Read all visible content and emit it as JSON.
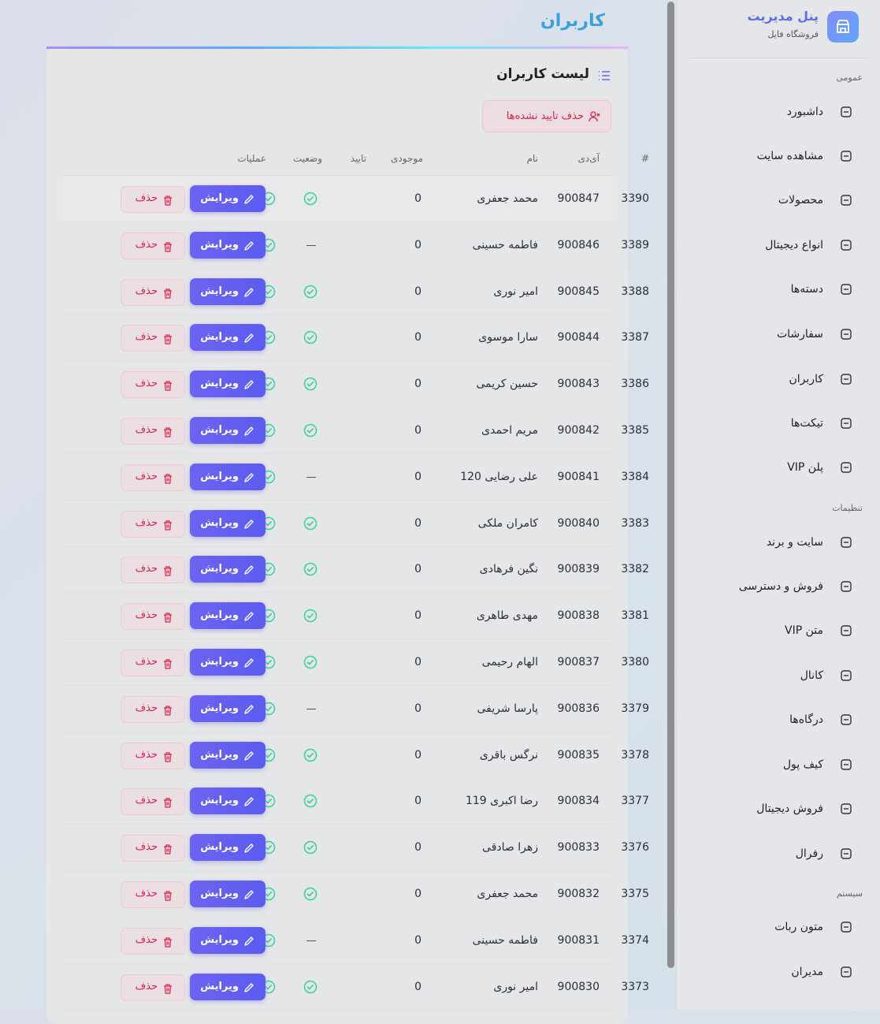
{
  "page": {
    "title": "کاربران"
  },
  "sidebar": {
    "title": "پنل مدیریت",
    "subtitle": "فروشگاه فایل",
    "sections": [
      {
        "heading": "عمومی",
        "items": [
          "داشبورد",
          "مشاهده سایت",
          "محصولات",
          "انواع دیجیتال",
          "دسته‌ها",
          "سفارشات",
          "کاربران",
          "تیکت‌ها",
          "پلن VIP"
        ]
      },
      {
        "heading": "تنظیمات",
        "items": [
          "سایت و برند",
          "فروش و دسترسی",
          "متن VIP",
          "کانال",
          "درگاه‌ها",
          "کیف پول",
          "فروش دیجیتال",
          "رفرال"
        ]
      },
      {
        "heading": "سیستم",
        "items": [
          "متون ربات",
          "مدیران"
        ]
      }
    ]
  },
  "card": {
    "title": "لیست کاربران",
    "bulk_delete": "حذف تایید نشده‌ها"
  },
  "table": {
    "headers": [
      "#",
      "آی‌دی",
      "نام",
      "موجودی",
      "تایید",
      "وضعیت",
      "عملیات"
    ],
    "actions": {
      "edit": "ویرایش",
      "delete": "حذف"
    },
    "rows": [
      {
        "id": 3390,
        "user_id": 900847,
        "name": "محمد جعفری",
        "balance": 0,
        "approved": true,
        "status": true
      },
      {
        "id": 3389,
        "user_id": 900846,
        "name": "فاطمه حسینی",
        "balance": 0,
        "approved": false,
        "status": true
      },
      {
        "id": 3388,
        "user_id": 900845,
        "name": "امیر نوری",
        "balance": 0,
        "approved": true,
        "status": true
      },
      {
        "id": 3387,
        "user_id": 900844,
        "name": "سارا موسوی",
        "balance": 0,
        "approved": true,
        "status": true
      },
      {
        "id": 3386,
        "user_id": 900843,
        "name": "حسین کریمی",
        "balance": 0,
        "approved": true,
        "status": true
      },
      {
        "id": 3385,
        "user_id": 900842,
        "name": "مریم احمدی",
        "balance": 0,
        "approved": true,
        "status": true
      },
      {
        "id": 3384,
        "user_id": 900841,
        "name": "علی رضایی 120",
        "balance": 0,
        "approved": false,
        "status": true
      },
      {
        "id": 3383,
        "user_id": 900840,
        "name": "کامران ملکی",
        "balance": 0,
        "approved": true,
        "status": true
      },
      {
        "id": 3382,
        "user_id": 900839,
        "name": "نگین فرهادی",
        "balance": 0,
        "approved": true,
        "status": true
      },
      {
        "id": 3381,
        "user_id": 900838,
        "name": "مهدی طاهری",
        "balance": 0,
        "approved": true,
        "status": true
      },
      {
        "id": 3380,
        "user_id": 900837,
        "name": "الهام رحیمی",
        "balance": 0,
        "approved": true,
        "status": true
      },
      {
        "id": 3379,
        "user_id": 900836,
        "name": "پارسا شریفی",
        "balance": 0,
        "approved": false,
        "status": true
      },
      {
        "id": 3378,
        "user_id": 900835,
        "name": "نرگس باقری",
        "balance": 0,
        "approved": true,
        "status": true
      },
      {
        "id": 3377,
        "user_id": 900834,
        "name": "رضا اکبری 119",
        "balance": 0,
        "approved": true,
        "status": true
      },
      {
        "id": 3376,
        "user_id": 900833,
        "name": "زهرا صادقی",
        "balance": 0,
        "approved": true,
        "status": true
      },
      {
        "id": 3375,
        "user_id": 900832,
        "name": "محمد جعفری",
        "balance": 0,
        "approved": true,
        "status": true
      },
      {
        "id": 3374,
        "user_id": 900831,
        "name": "فاطمه حسینی",
        "balance": 0,
        "approved": false,
        "status": true
      },
      {
        "id": 3373,
        "user_id": 900830,
        "name": "امیر نوری",
        "balance": 0,
        "approved": true,
        "status": true
      }
    ]
  }
}
